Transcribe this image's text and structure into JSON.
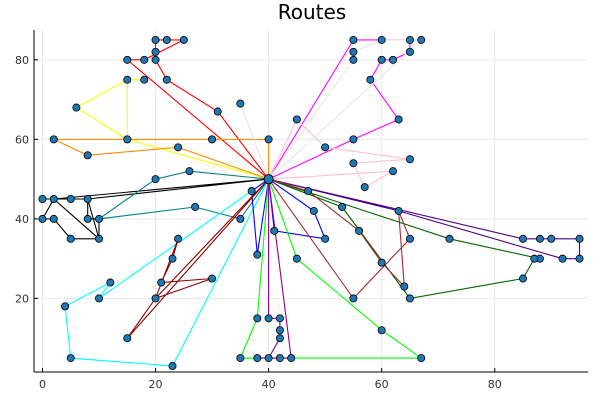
{
  "chart_data": {
    "type": "line",
    "title": "Routes",
    "xlabel": "",
    "ylabel": "",
    "xlim": [
      -1.5,
      96.5
    ],
    "ylim": [
      1.5,
      87.5
    ],
    "xticks": [
      0,
      20,
      40,
      60,
      80
    ],
    "yticks": [
      20,
      40,
      60,
      80
    ],
    "grid": true,
    "legend": "none",
    "depot": [
      40,
      50
    ],
    "point_color": "#1f77b4",
    "series": [
      {
        "color": "#ff0000",
        "points": [
          [
            40,
            50
          ],
          [
            31,
            67
          ],
          [
            22,
            75
          ],
          [
            20,
            80
          ],
          [
            20,
            82
          ],
          [
            20,
            85
          ],
          [
            22,
            85
          ],
          [
            25,
            85
          ],
          [
            18,
            80
          ],
          [
            15,
            80
          ],
          [
            40,
            50
          ]
        ]
      },
      {
        "color": "#ffff00",
        "points": [
          [
            40,
            50
          ],
          [
            15,
            60
          ],
          [
            6,
            68
          ],
          [
            15,
            75
          ],
          [
            18,
            75
          ],
          [
            15,
            75
          ],
          [
            15,
            60
          ],
          [
            40,
            50
          ]
        ]
      },
      {
        "color": "#ff8c00",
        "points": [
          [
            40,
            50
          ],
          [
            40,
            60
          ],
          [
            30,
            60
          ],
          [
            2,
            60
          ],
          [
            8,
            56
          ],
          [
            24,
            58
          ],
          [
            40,
            50
          ]
        ]
      },
      {
        "color": "#ff00ff",
        "points": [
          [
            40,
            50
          ],
          [
            55,
            60
          ],
          [
            63,
            65
          ],
          [
            58,
            75
          ],
          [
            60,
            80
          ],
          [
            62,
            80
          ],
          [
            65,
            82
          ],
          [
            65,
            85
          ],
          [
            55,
            85
          ],
          [
            40,
            50
          ]
        ]
      },
      {
        "color": "#e6e6e6",
        "points": [
          [
            40,
            50
          ],
          [
            35,
            69
          ],
          [
            40,
            50
          ],
          [
            55,
            80
          ],
          [
            55,
            82
          ],
          [
            60,
            85
          ],
          [
            67,
            85
          ],
          [
            40,
            50
          ]
        ]
      },
      {
        "color": "#ffc0cb",
        "points": [
          [
            40,
            50
          ],
          [
            45,
            65
          ],
          [
            50,
            58
          ],
          [
            65,
            55
          ],
          [
            55,
            54
          ],
          [
            57,
            48
          ],
          [
            62,
            52
          ],
          [
            40,
            50
          ]
        ]
      },
      {
        "color": "#000000",
        "points": [
          [
            40,
            50
          ],
          [
            8,
            45
          ],
          [
            5,
            45
          ],
          [
            0,
            45
          ],
          [
            2,
            45
          ],
          [
            0,
            40
          ],
          [
            2,
            40
          ],
          [
            5,
            35
          ],
          [
            10,
            35
          ],
          [
            10,
            40
          ],
          [
            8,
            40
          ],
          [
            8,
            45
          ],
          [
            10,
            35
          ],
          [
            2,
            45
          ],
          [
            40,
            50
          ]
        ]
      },
      {
        "color": "#008080",
        "points": [
          [
            40,
            50
          ],
          [
            26,
            52
          ],
          [
            20,
            50
          ],
          [
            10,
            40
          ],
          [
            27,
            43
          ],
          [
            35,
            40
          ],
          [
            40,
            50
          ]
        ]
      },
      {
        "color": "#00ffff",
        "points": [
          [
            40,
            50
          ],
          [
            23,
            3
          ],
          [
            5,
            5
          ],
          [
            4,
            18
          ],
          [
            12,
            24
          ],
          [
            10,
            20
          ],
          [
            40,
            50
          ]
        ]
      },
      {
        "color": "#0000ff",
        "points": [
          [
            40,
            50
          ],
          [
            37,
            47
          ],
          [
            38,
            31
          ],
          [
            40,
            50
          ],
          [
            41,
            37
          ],
          [
            50,
            35
          ],
          [
            48,
            42
          ],
          [
            40,
            50
          ]
        ]
      },
      {
        "color": "#8b0000",
        "points": [
          [
            40,
            50
          ],
          [
            15,
            10
          ],
          [
            20,
            20
          ],
          [
            24,
            35
          ],
          [
            23,
            30
          ],
          [
            21,
            24
          ],
          [
            30,
            25
          ],
          [
            20,
            20
          ],
          [
            40,
            50
          ]
        ]
      },
      {
        "color": "#00ff00",
        "points": [
          [
            40,
            50
          ],
          [
            38,
            15
          ],
          [
            35,
            5
          ],
          [
            67,
            5
          ],
          [
            60,
            12
          ],
          [
            45,
            30
          ],
          [
            40,
            50
          ]
        ]
      },
      {
        "color": "#8b008b",
        "points": [
          [
            40,
            50
          ],
          [
            40,
            15
          ],
          [
            42,
            15
          ],
          [
            42,
            12
          ],
          [
            42,
            10
          ],
          [
            40,
            5
          ],
          [
            38,
            5
          ],
          [
            42,
            5
          ],
          [
            44,
            5
          ],
          [
            40,
            50
          ]
        ]
      },
      {
        "color": "#4b0082",
        "points": [
          [
            40,
            50
          ],
          [
            85,
            35
          ],
          [
            88,
            35
          ],
          [
            90,
            35
          ],
          [
            95,
            35
          ],
          [
            95,
            30
          ],
          [
            92,
            30
          ],
          [
            63,
            42
          ],
          [
            40,
            50
          ]
        ]
      },
      {
        "color": "#006400",
        "points": [
          [
            40,
            50
          ],
          [
            72,
            35
          ],
          [
            88,
            30
          ],
          [
            87,
            30
          ],
          [
            85,
            25
          ],
          [
            65,
            20
          ],
          [
            53,
            43
          ],
          [
            40,
            50
          ]
        ]
      },
      {
        "color": "#a52a2a",
        "points": [
          [
            40,
            50
          ],
          [
            47,
            47
          ],
          [
            56,
            37
          ],
          [
            60,
            29
          ],
          [
            64,
            23
          ],
          [
            63,
            42
          ],
          [
            65,
            35
          ],
          [
            55,
            20
          ],
          [
            40,
            50
          ]
        ]
      }
    ]
  }
}
